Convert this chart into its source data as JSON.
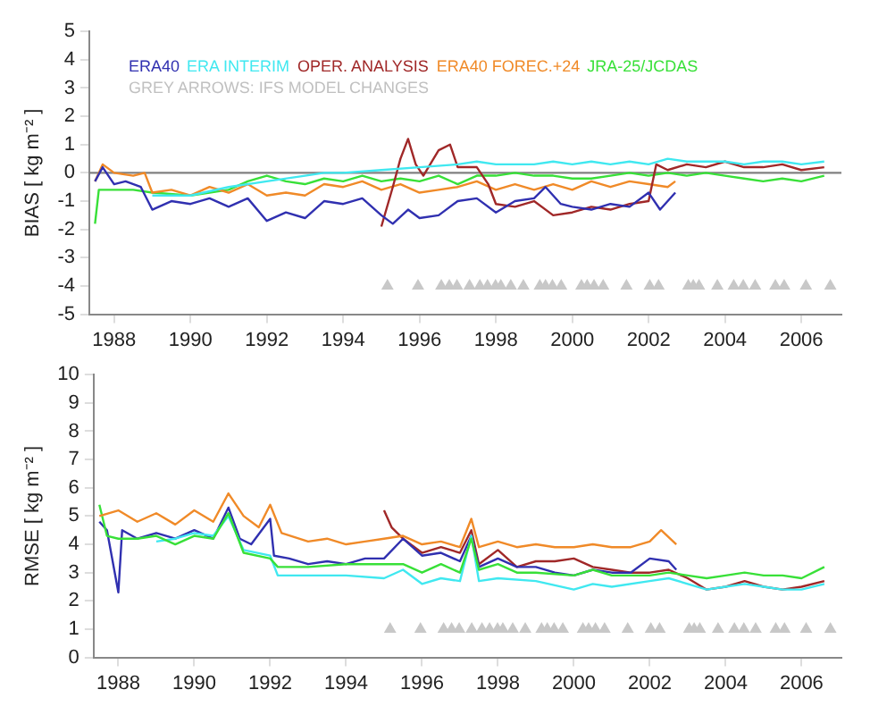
{
  "chart_data": [
    {
      "type": "line",
      "ylabel": "BIAS [ kg m⁻² ]",
      "xlim": [
        1987.35,
        2007.05
      ],
      "xticks": [
        1988,
        1990,
        1992,
        1994,
        1996,
        1998,
        2000,
        2002,
        2004,
        2006
      ],
      "ylim": [
        -5,
        5
      ],
      "yticks": [
        -5,
        -4,
        -3,
        -2,
        -1,
        0,
        1,
        2,
        3,
        4,
        5
      ],
      "grid": false,
      "legend": "top left",
      "marker": "none",
      "annotations": [
        "GREY ARROWS: IFS MODEL CHANGES"
      ],
      "ref_lines": [
        {
          "axis": "y",
          "value": 0,
          "color": "#808080"
        }
      ],
      "series": [
        {
          "name": "ERA40",
          "color": "#3030b0",
          "x": [
            1987.5,
            1987.7,
            1988,
            1988.3,
            1988.7,
            1989,
            1989.5,
            1990,
            1990.5,
            1991,
            1991.5,
            1992,
            1992.5,
            1993,
            1993.5,
            1994,
            1994.5,
            1995,
            1995.3,
            1995.7,
            1996,
            1996.5,
            1997,
            1997.5,
            1998,
            1998.5,
            1999,
            1999.3,
            1999.7,
            2000,
            2000.5,
            2001,
            2001.5,
            2002,
            2002.3,
            2002.7
          ],
          "values": [
            -0.3,
            0.2,
            -0.4,
            -0.3,
            -0.5,
            -1.3,
            -1.0,
            -1.1,
            -0.9,
            -1.2,
            -0.9,
            -1.7,
            -1.4,
            -1.6,
            -1.0,
            -1.1,
            -0.9,
            -1.5,
            -1.8,
            -1.3,
            -1.6,
            -1.5,
            -1.0,
            -0.9,
            -1.4,
            -1.0,
            -0.9,
            -0.5,
            -1.1,
            -1.2,
            -1.3,
            -1.1,
            -1.2,
            -0.7,
            -1.3,
            -0.7
          ]
        },
        {
          "name": "ERA INTERIM",
          "color": "#40e8f0",
          "x": [
            1989,
            1990,
            1991,
            1992,
            1993,
            1993.5,
            1994,
            1995,
            1996,
            1997,
            1997.5,
            1998,
            1999,
            1999.5,
            2000,
            2000.5,
            2001,
            2001.5,
            2002,
            2002.5,
            2003,
            2003.5,
            2004,
            2004.5,
            2005,
            2005.5,
            2006,
            2006.6
          ],
          "values": [
            -0.8,
            -0.8,
            -0.5,
            -0.3,
            -0.1,
            0.0,
            0.0,
            0.1,
            0.2,
            0.3,
            0.4,
            0.3,
            0.3,
            0.4,
            0.3,
            0.4,
            0.3,
            0.4,
            0.3,
            0.5,
            0.4,
            0.4,
            0.4,
            0.3,
            0.4,
            0.4,
            0.3,
            0.4
          ]
        },
        {
          "name": "OPER. ANALYSIS",
          "color": "#a02828",
          "x": [
            1995,
            1995.3,
            1995.5,
            1995.7,
            1995.9,
            1996.1,
            1996.5,
            1996.8,
            1997,
            1997.5,
            1997.8,
            1998,
            1998.5,
            1999,
            1999.5,
            2000,
            2000.5,
            2001,
            2001.5,
            2002,
            2002.2,
            2002.5,
            2003,
            2003.5,
            2004,
            2004.5,
            2005,
            2005.5,
            2006,
            2006.6
          ],
          "values": [
            -1.9,
            -0.5,
            0.5,
            1.2,
            0.3,
            -0.1,
            0.8,
            1.0,
            0.2,
            0.2,
            -0.4,
            -1.1,
            -1.2,
            -1.0,
            -1.5,
            -1.4,
            -1.2,
            -1.3,
            -1.1,
            -1.0,
            0.3,
            0.1,
            0.3,
            0.2,
            0.4,
            0.2,
            0.2,
            0.3,
            0.1,
            0.2
          ]
        },
        {
          "name": "ERA40 FOREC.+24",
          "color": "#f08a28",
          "x": [
            1987.5,
            1987.7,
            1988,
            1988.5,
            1988.8,
            1989,
            1989.5,
            1990,
            1990.5,
            1991,
            1991.5,
            1992,
            1992.5,
            1993,
            1993.5,
            1994,
            1994.5,
            1995,
            1995.5,
            1996,
            1996.5,
            1997,
            1997.5,
            1998,
            1998.5,
            1999,
            1999.5,
            2000,
            2000.5,
            2001,
            2001.5,
            2002,
            2002.5,
            2002.7
          ],
          "values": [
            -0.3,
            0.3,
            0.0,
            -0.1,
            0.0,
            -0.7,
            -0.6,
            -0.8,
            -0.5,
            -0.7,
            -0.4,
            -0.8,
            -0.7,
            -0.8,
            -0.4,
            -0.5,
            -0.3,
            -0.6,
            -0.4,
            -0.7,
            -0.6,
            -0.5,
            -0.3,
            -0.6,
            -0.4,
            -0.6,
            -0.4,
            -0.6,
            -0.3,
            -0.5,
            -0.3,
            -0.4,
            -0.5,
            -0.3
          ]
        },
        {
          "name": "JRA-25/JCDAS",
          "color": "#38e038",
          "x": [
            1987.5,
            1987.6,
            1988,
            1988.5,
            1989,
            1990,
            1990.5,
            1991,
            1991.5,
            1992,
            1992.5,
            1993,
            1993.5,
            1994,
            1994.5,
            1995,
            1995.5,
            1996,
            1996.5,
            1997,
            1997.5,
            1998,
            1998.5,
            1999,
            1999.5,
            2000,
            2000.5,
            2001,
            2001.5,
            2002,
            2002.5,
            2003,
            2003.5,
            2004,
            2004.5,
            2005,
            2005.5,
            2006,
            2006.6
          ],
          "values": [
            -1.8,
            -0.6,
            -0.6,
            -0.6,
            -0.7,
            -0.8,
            -0.7,
            -0.6,
            -0.3,
            -0.1,
            -0.3,
            -0.4,
            -0.2,
            -0.3,
            -0.1,
            -0.3,
            -0.2,
            -0.3,
            -0.1,
            -0.4,
            -0.1,
            -0.1,
            0.0,
            -0.1,
            -0.1,
            -0.2,
            -0.2,
            -0.1,
            0.0,
            -0.1,
            0.0,
            -0.1,
            0.0,
            -0.1,
            -0.2,
            -0.3,
            -0.2,
            -0.3,
            -0.1
          ]
        },
        {
          "type": "scatter",
          "marker": "triangle",
          "color": "#c8c8c8",
          "x": [
            1995.16,
            1995.96,
            1996.57,
            1996.78,
            1996.98,
            1997.31,
            1997.58,
            1997.78,
            1997.99,
            1998.13,
            1998.39,
            1998.72,
            1999.15,
            1999.3,
            1999.48,
            1999.71,
            2000.24,
            2000.39,
            2000.57,
            2000.81,
            2001.42,
            2002.03,
            2002.26,
            2003.04,
            2003.17,
            2003.32,
            2003.8,
            2004.23,
            2004.48,
            2004.79,
            2005.32,
            2005.55,
            2006.12,
            2006.76
          ],
          "values": [
            -4,
            -4,
            -4,
            -4,
            -4,
            -4,
            -4,
            -4,
            -4,
            -4,
            -4,
            -4,
            -4,
            -4,
            -4,
            -4,
            -4,
            -4,
            -4,
            -4,
            -4,
            -4,
            -4,
            -4,
            -4,
            -4,
            -4,
            -4,
            -4,
            -4,
            -4,
            -4,
            -4,
            -4
          ]
        }
      ]
    },
    {
      "type": "line",
      "ylabel": "RMSE [ kg m⁻² ]",
      "xlim": [
        1987.35,
        2007.05
      ],
      "xticks": [
        1988,
        1990,
        1992,
        1994,
        1996,
        1998,
        2000,
        2002,
        2004,
        2006
      ],
      "ylim": [
        0,
        10
      ],
      "yticks": [
        0,
        1,
        2,
        3,
        4,
        5,
        6,
        7,
        8,
        9,
        10
      ],
      "grid": false,
      "marker": "none",
      "series": [
        {
          "color": "#f08a28",
          "x": [
            1987.5,
            1988,
            1988.5,
            1989,
            1989.5,
            1990,
            1990.5,
            1990.9,
            1991.3,
            1991.7,
            1992,
            1992.3,
            1993,
            1993.5,
            1994,
            1994.5,
            1995,
            1995.5,
            1996,
            1996.5,
            1997,
            1997.3,
            1997.5,
            1998,
            1998.5,
            1999,
            1999.5,
            2000,
            2000.5,
            2001,
            2001.5,
            2002,
            2002.3,
            2002.7
          ],
          "values": [
            5.0,
            5.2,
            4.8,
            5.1,
            4.7,
            5.2,
            4.8,
            5.8,
            5.0,
            4.6,
            5.4,
            4.4,
            4.1,
            4.2,
            4.0,
            4.1,
            4.2,
            4.3,
            4.0,
            4.1,
            3.9,
            4.9,
            3.9,
            4.1,
            3.9,
            4.0,
            3.9,
            3.9,
            4.0,
            3.9,
            3.9,
            4.1,
            4.5,
            4.0
          ]
        },
        {
          "color": "#38e038",
          "x": [
            1987.5,
            1987.7,
            1988,
            1988.5,
            1989,
            1989.5,
            1990,
            1990.5,
            1990.9,
            1991.3,
            1992,
            1992.2,
            1993,
            1994,
            1995,
            1995.5,
            1996,
            1996.5,
            1997,
            1997.3,
            1997.5,
            1998,
            1998.5,
            1999,
            2000,
            2000.5,
            2001,
            2002,
            2002.5,
            2003,
            2003.5,
            2004,
            2004.5,
            2005,
            2005.5,
            2006,
            2006.6
          ],
          "values": [
            5.4,
            4.3,
            4.2,
            4.2,
            4.3,
            4.0,
            4.3,
            4.2,
            5.1,
            3.7,
            3.5,
            3.2,
            3.2,
            3.3,
            3.3,
            3.3,
            3.0,
            3.3,
            3.0,
            4.2,
            3.1,
            3.3,
            3.0,
            3.0,
            2.9,
            3.1,
            2.9,
            2.9,
            3.0,
            2.9,
            2.8,
            2.9,
            3.0,
            2.9,
            2.9,
            2.8,
            3.2
          ]
        },
        {
          "color": "#40e8f0",
          "x": [
            1989,
            1989.5,
            1990,
            1990.5,
            1990.9,
            1991.3,
            1992,
            1992.2,
            1993,
            1994,
            1995,
            1995.5,
            1996,
            1996.5,
            1997,
            1997.3,
            1997.5,
            1998,
            1999,
            2000,
            2000.5,
            2001,
            2002,
            2002.5,
            2003,
            2003.5,
            2004,
            2004.5,
            2005,
            2005.5,
            2006,
            2006.6
          ],
          "values": [
            4.1,
            4.2,
            4.4,
            4.3,
            5.0,
            3.8,
            3.6,
            2.9,
            2.9,
            2.9,
            2.8,
            3.1,
            2.6,
            2.8,
            2.7,
            4.3,
            2.7,
            2.8,
            2.7,
            2.4,
            2.6,
            2.5,
            2.7,
            2.8,
            2.6,
            2.4,
            2.5,
            2.6,
            2.5,
            2.4,
            2.4,
            2.6
          ]
        },
        {
          "color": "#3030b0",
          "x": [
            1987.5,
            1987.7,
            1988,
            1988.1,
            1988.5,
            1989,
            1989.5,
            1990,
            1990.5,
            1990.9,
            1991.2,
            1991.5,
            1992,
            1992.1,
            1992.5,
            1993,
            1993.5,
            1994,
            1994.5,
            1995,
            1995.5,
            1996,
            1996.5,
            1997,
            1997.3,
            1997.5,
            1998,
            1998.5,
            1999,
            1999.5,
            2000,
            2000.5,
            2001,
            2001.5,
            2002,
            2002.5,
            2002.7
          ],
          "values": [
            4.8,
            4.5,
            2.3,
            4.5,
            4.2,
            4.4,
            4.2,
            4.5,
            4.2,
            5.3,
            4.2,
            4.0,
            4.9,
            3.6,
            3.5,
            3.3,
            3.4,
            3.3,
            3.5,
            3.5,
            4.2,
            3.6,
            3.7,
            3.4,
            4.3,
            3.2,
            3.5,
            3.2,
            3.2,
            3.0,
            2.9,
            3.1,
            3.0,
            3.0,
            3.5,
            3.4,
            3.1
          ]
        },
        {
          "color": "#a02828",
          "x": [
            1995,
            1995.2,
            1995.5,
            1996,
            1996.5,
            1997,
            1997.3,
            1997.5,
            1998,
            1998.5,
            1999,
            1999.5,
            2000,
            2000.5,
            2001,
            2001.5,
            2002,
            2002.5,
            2003,
            2003.5,
            2004,
            2004.5,
            2005,
            2005.5,
            2006,
            2006.6
          ],
          "values": [
            5.2,
            4.6,
            4.2,
            3.7,
            3.9,
            3.7,
            4.5,
            3.3,
            3.8,
            3.2,
            3.4,
            3.4,
            3.5,
            3.2,
            3.1,
            3.0,
            3.0,
            3.1,
            2.8,
            2.4,
            2.5,
            2.7,
            2.5,
            2.4,
            2.5,
            2.7
          ]
        },
        {
          "type": "scatter",
          "marker": "triangle",
          "color": "#c8c8c8",
          "x": [
            1995.16,
            1995.96,
            1996.57,
            1996.78,
            1996.98,
            1997.31,
            1997.58,
            1997.78,
            1997.99,
            1998.13,
            1998.39,
            1998.72,
            1999.15,
            1999.3,
            1999.48,
            1999.71,
            2000.24,
            2000.39,
            2000.57,
            2000.81,
            2001.42,
            2002.03,
            2002.26,
            2003.04,
            2003.17,
            2003.32,
            2003.8,
            2004.23,
            2004.48,
            2004.79,
            2005.32,
            2005.55,
            2006.12,
            2006.76
          ],
          "values": [
            1,
            1,
            1,
            1,
            1,
            1,
            1,
            1,
            1,
            1,
            1,
            1,
            1,
            1,
            1,
            1,
            1,
            1,
            1,
            1,
            1,
            1,
            1,
            1,
            1,
            1,
            1,
            1,
            1,
            1,
            1,
            1,
            1,
            1
          ]
        }
      ]
    }
  ]
}
